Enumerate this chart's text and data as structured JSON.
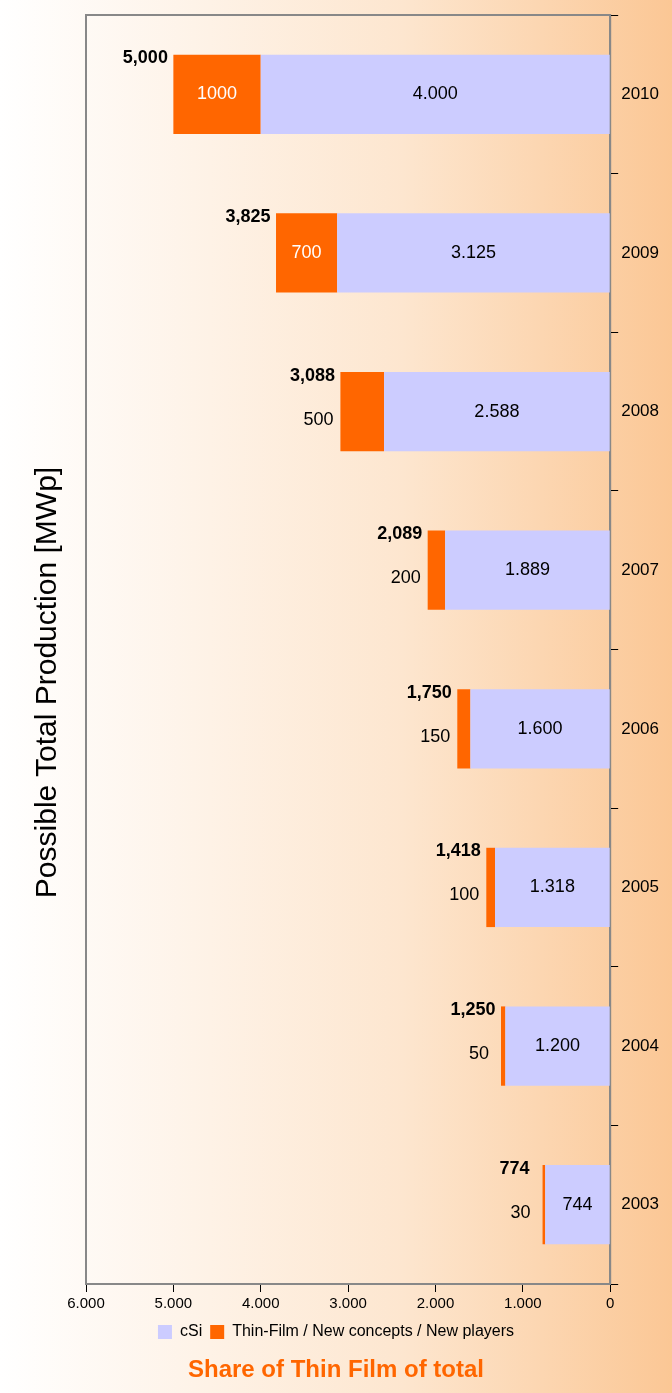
{
  "chart_data": {
    "type": "bar",
    "orientation": "horizontal",
    "title": "Possible Total Production [MWp]",
    "categories": [
      "2010",
      "2009",
      "2008",
      "2007",
      "2006",
      "2005",
      "2004",
      "2003"
    ],
    "stacked": true,
    "series": [
      {
        "name": "cSi",
        "color": "#ccccff",
        "values": [
          4000,
          3125,
          2588,
          1889,
          1600,
          1318,
          1200,
          744
        ],
        "value_labels": [
          "4.000",
          "3.125",
          "2.588",
          "1.889",
          "1.600",
          "1.318",
          "1.200",
          "744"
        ]
      },
      {
        "name": "Thin-Film / New concepts / New players",
        "color": "#ff6600",
        "values": [
          1000,
          700,
          500,
          200,
          150,
          100,
          50,
          30
        ],
        "value_labels": [
          "1000",
          "700",
          "500",
          "200",
          "150",
          "100",
          "50",
          "30"
        ]
      }
    ],
    "xlim": [
      6000,
      0
    ],
    "xticks": [
      0,
      {
        "value": 1000,
        "label": "1.000"
      },
      {
        "value": 2000,
        "label": "2.000"
      },
      {
        "value": 3000,
        "label": "3.000"
      },
      {
        "value": 4000,
        "label": "4.000"
      },
      {
        "value": 5000,
        "label": "5.000"
      },
      {
        "value": 6000,
        "label": "6.000"
      }
    ],
    "grid": false,
    "legend": "bottom",
    "annotations": [
      "Share of Thin Film of total",
      {
        "text": "5,000",
        "x": 5000,
        "y": "2010"
      },
      {
        "text": "3,825",
        "x": 3825,
        "y": "2009"
      },
      {
        "text": "3,088",
        "x": 3088,
        "y": "2008"
      },
      {
        "text": "2,089",
        "x": 2089,
        "y": "2007"
      },
      {
        "text": "1,750",
        "x": 1750,
        "y": "2006"
      },
      {
        "text": "1,418",
        "x": 1418,
        "y": "2005"
      },
      {
        "text": "1,250",
        "x": 1250,
        "y": "2004"
      },
      {
        "text": "774",
        "x": 774,
        "y": "2003"
      }
    ]
  }
}
